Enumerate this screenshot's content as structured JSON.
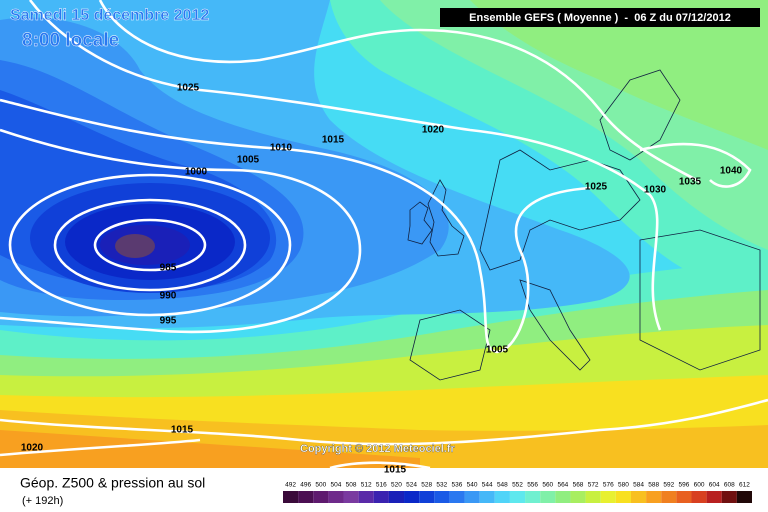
{
  "header": {
    "date": "Samedi 15 décembre 2012",
    "time": "8:00 locale",
    "model": "Ensemble GEFS ( Moyenne )  -  06 Z du 07/12/2012"
  },
  "copyright": "Copyright © 2012 Meteociel.fr",
  "isobar_labels": [
    "1025",
    "1015",
    "1010",
    "1005",
    "1000",
    "1020",
    "1025",
    "1030",
    "1035",
    "1040",
    "985",
    "990",
    "995",
    "1005",
    "1015",
    "1020",
    "1015"
  ],
  "legend": {
    "title": "Géop. Z500 & pression au sol",
    "lead": "(+ 192h)",
    "scale": [
      492,
      496,
      500,
      504,
      508,
      512,
      516,
      520,
      524,
      528,
      532,
      536,
      540,
      544,
      548,
      552,
      556,
      560,
      564,
      568,
      572,
      576,
      580,
      584,
      588,
      592,
      596,
      600,
      604,
      608,
      612
    ],
    "colors": [
      "#3a0a3a",
      "#4b0f52",
      "#5e1a6e",
      "#6e2a8a",
      "#7a3aa0",
      "#5a2aa8",
      "#3a22b0",
      "#1a20b8",
      "#0a28c8",
      "#1040d8",
      "#1a5ae6",
      "#2a78f0",
      "#3a98f5",
      "#45b8f8",
      "#50d4f8",
      "#5ee8ee",
      "#70f0d0",
      "#80f0a8",
      "#90ee80",
      "#a8ee60",
      "#c8f040",
      "#e8f030",
      "#f8e020",
      "#f8c020",
      "#f8a020",
      "#f08020",
      "#e86020",
      "#d84020",
      "#b82020",
      "#701010",
      "#200808"
    ]
  }
}
